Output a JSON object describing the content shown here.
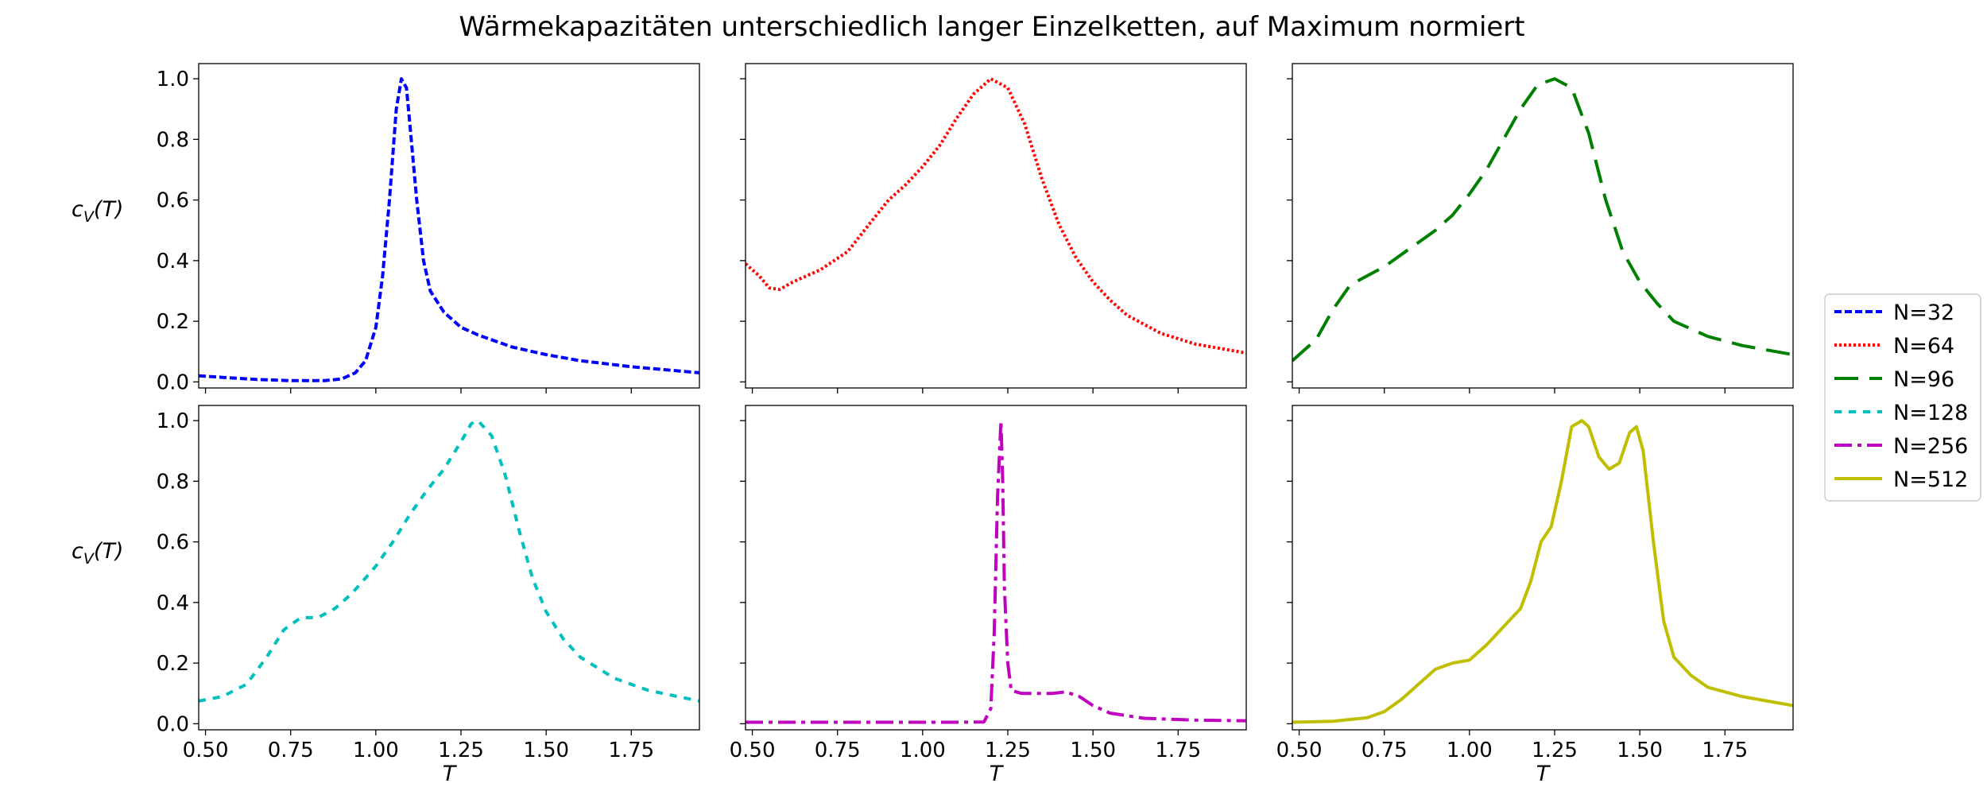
{
  "figure": {
    "title": "Wärmekapazitäten unterschiedlich langer Einzelketten, auf Maximum normiert"
  },
  "chart_data": {
    "type": "line",
    "title": "Wärmekapazitäten unterschiedlich langer Einzelketten, auf Maximum normiert",
    "layout": "2x3 grid, shared x and y axes",
    "xlabel": "T",
    "ylabel": "c_V(T)",
    "ylabel_parts": {
      "base": "c",
      "sub": "V",
      "tail": "(T)"
    },
    "xlim": [
      0.48,
      1.95
    ],
    "ylim": [
      -0.02,
      1.05
    ],
    "xticks": [
      "0.50",
      "0.75",
      "1.00",
      "1.25",
      "1.50",
      "1.75"
    ],
    "xtick_values": [
      0.5,
      0.75,
      1.0,
      1.25,
      1.5,
      1.75
    ],
    "yticks": [
      "0.0",
      "0.2",
      "0.4",
      "0.6",
      "0.8",
      "1.0"
    ],
    "ytick_values": [
      0.0,
      0.2,
      0.4,
      0.6,
      0.8,
      1.0
    ],
    "grid": false,
    "legend_position": "right",
    "series": [
      {
        "name": "N=32",
        "color": "#0000ff",
        "linestyle": "dashed-fine",
        "panel": 0,
        "points": [
          [
            0.48,
            0.02
          ],
          [
            0.55,
            0.015
          ],
          [
            0.65,
            0.008
          ],
          [
            0.75,
            0.004
          ],
          [
            0.85,
            0.004
          ],
          [
            0.9,
            0.01
          ],
          [
            0.94,
            0.03
          ],
          [
            0.97,
            0.07
          ],
          [
            1.0,
            0.18
          ],
          [
            1.02,
            0.35
          ],
          [
            1.04,
            0.6
          ],
          [
            1.06,
            0.9
          ],
          [
            1.075,
            1.0
          ],
          [
            1.09,
            0.97
          ],
          [
            1.1,
            0.85
          ],
          [
            1.12,
            0.6
          ],
          [
            1.14,
            0.4
          ],
          [
            1.16,
            0.3
          ],
          [
            1.2,
            0.23
          ],
          [
            1.25,
            0.18
          ],
          [
            1.3,
            0.155
          ],
          [
            1.4,
            0.115
          ],
          [
            1.5,
            0.09
          ],
          [
            1.6,
            0.07
          ],
          [
            1.75,
            0.05
          ],
          [
            1.95,
            0.03
          ]
        ]
      },
      {
        "name": "N=64",
        "color": "#ff0000",
        "linestyle": "dotted",
        "panel": 1,
        "points": [
          [
            0.48,
            0.39
          ],
          [
            0.52,
            0.35
          ],
          [
            0.55,
            0.31
          ],
          [
            0.58,
            0.305
          ],
          [
            0.62,
            0.33
          ],
          [
            0.7,
            0.37
          ],
          [
            0.78,
            0.43
          ],
          [
            0.85,
            0.53
          ],
          [
            0.9,
            0.6
          ],
          [
            0.95,
            0.65
          ],
          [
            1.0,
            0.71
          ],
          [
            1.05,
            0.78
          ],
          [
            1.1,
            0.87
          ],
          [
            1.15,
            0.95
          ],
          [
            1.2,
            1.0
          ],
          [
            1.25,
            0.97
          ],
          [
            1.3,
            0.85
          ],
          [
            1.35,
            0.67
          ],
          [
            1.4,
            0.52
          ],
          [
            1.45,
            0.41
          ],
          [
            1.5,
            0.33
          ],
          [
            1.55,
            0.27
          ],
          [
            1.6,
            0.22
          ],
          [
            1.7,
            0.16
          ],
          [
            1.8,
            0.125
          ],
          [
            1.95,
            0.095
          ]
        ]
      },
      {
        "name": "N=96",
        "color": "#008000",
        "linestyle": "long-dashed",
        "panel": 2,
        "points": [
          [
            0.48,
            0.07
          ],
          [
            0.55,
            0.14
          ],
          [
            0.6,
            0.24
          ],
          [
            0.65,
            0.32
          ],
          [
            0.7,
            0.35
          ],
          [
            0.75,
            0.38
          ],
          [
            0.8,
            0.42
          ],
          [
            0.85,
            0.46
          ],
          [
            0.9,
            0.5
          ],
          [
            0.95,
            0.55
          ],
          [
            1.0,
            0.62
          ],
          [
            1.05,
            0.7
          ],
          [
            1.1,
            0.8
          ],
          [
            1.15,
            0.9
          ],
          [
            1.2,
            0.98
          ],
          [
            1.25,
            1.0
          ],
          [
            1.3,
            0.97
          ],
          [
            1.35,
            0.82
          ],
          [
            1.4,
            0.6
          ],
          [
            1.45,
            0.43
          ],
          [
            1.5,
            0.33
          ],
          [
            1.55,
            0.26
          ],
          [
            1.6,
            0.2
          ],
          [
            1.7,
            0.15
          ],
          [
            1.8,
            0.12
          ],
          [
            1.95,
            0.09
          ]
        ]
      },
      {
        "name": "N=128",
        "color": "#00bfbf",
        "linestyle": "short-dashed",
        "panel": 3,
        "points": [
          [
            0.48,
            0.075
          ],
          [
            0.55,
            0.09
          ],
          [
            0.62,
            0.13
          ],
          [
            0.68,
            0.22
          ],
          [
            0.73,
            0.31
          ],
          [
            0.78,
            0.35
          ],
          [
            0.83,
            0.35
          ],
          [
            0.88,
            0.38
          ],
          [
            0.93,
            0.43
          ],
          [
            1.0,
            0.52
          ],
          [
            1.05,
            0.6
          ],
          [
            1.1,
            0.69
          ],
          [
            1.15,
            0.77
          ],
          [
            1.2,
            0.84
          ],
          [
            1.25,
            0.93
          ],
          [
            1.28,
            0.99
          ],
          [
            1.3,
            1.0
          ],
          [
            1.34,
            0.95
          ],
          [
            1.38,
            0.82
          ],
          [
            1.42,
            0.64
          ],
          [
            1.46,
            0.48
          ],
          [
            1.5,
            0.37
          ],
          [
            1.55,
            0.28
          ],
          [
            1.6,
            0.22
          ],
          [
            1.7,
            0.15
          ],
          [
            1.8,
            0.11
          ],
          [
            1.95,
            0.075
          ]
        ]
      },
      {
        "name": "N=256",
        "color": "#bf00bf",
        "linestyle": "dash-dot",
        "panel": 4,
        "points": [
          [
            0.48,
            0.005
          ],
          [
            0.7,
            0.005
          ],
          [
            0.9,
            0.005
          ],
          [
            1.1,
            0.005
          ],
          [
            1.18,
            0.006
          ],
          [
            1.2,
            0.05
          ],
          [
            1.21,
            0.3
          ],
          [
            1.22,
            0.75
          ],
          [
            1.23,
            1.0
          ],
          [
            1.235,
            0.8
          ],
          [
            1.24,
            0.45
          ],
          [
            1.25,
            0.2
          ],
          [
            1.26,
            0.11
          ],
          [
            1.29,
            0.1
          ],
          [
            1.33,
            0.1
          ],
          [
            1.38,
            0.1
          ],
          [
            1.42,
            0.105
          ],
          [
            1.46,
            0.09
          ],
          [
            1.5,
            0.06
          ],
          [
            1.55,
            0.035
          ],
          [
            1.65,
            0.018
          ],
          [
            1.8,
            0.012
          ],
          [
            1.95,
            0.01
          ]
        ]
      },
      {
        "name": "N=512",
        "color": "#bfbf00",
        "linestyle": "solid",
        "panel": 5,
        "points": [
          [
            0.48,
            0.005
          ],
          [
            0.6,
            0.008
          ],
          [
            0.7,
            0.02
          ],
          [
            0.75,
            0.04
          ],
          [
            0.8,
            0.08
          ],
          [
            0.85,
            0.13
          ],
          [
            0.9,
            0.18
          ],
          [
            0.95,
            0.2
          ],
          [
            1.0,
            0.21
          ],
          [
            1.05,
            0.26
          ],
          [
            1.1,
            0.32
          ],
          [
            1.15,
            0.38
          ],
          [
            1.18,
            0.47
          ],
          [
            1.21,
            0.6
          ],
          [
            1.24,
            0.65
          ],
          [
            1.27,
            0.8
          ],
          [
            1.3,
            0.98
          ],
          [
            1.33,
            1.0
          ],
          [
            1.35,
            0.98
          ],
          [
            1.38,
            0.88
          ],
          [
            1.41,
            0.84
          ],
          [
            1.44,
            0.86
          ],
          [
            1.47,
            0.96
          ],
          [
            1.49,
            0.98
          ],
          [
            1.51,
            0.9
          ],
          [
            1.54,
            0.6
          ],
          [
            1.57,
            0.34
          ],
          [
            1.6,
            0.22
          ],
          [
            1.65,
            0.16
          ],
          [
            1.7,
            0.12
          ],
          [
            1.8,
            0.09
          ],
          [
            1.95,
            0.06
          ]
        ]
      }
    ]
  }
}
